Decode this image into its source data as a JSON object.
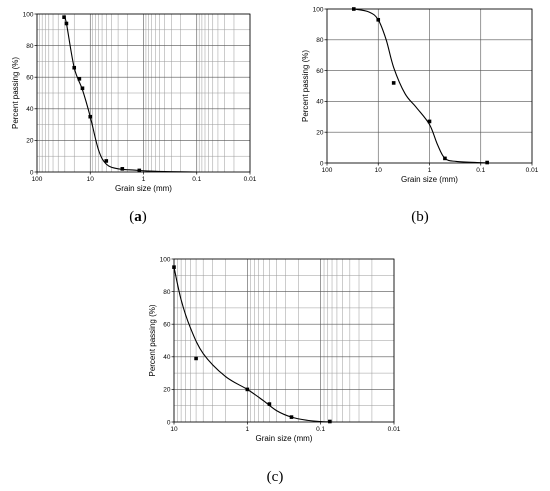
{
  "chart_data": [
    {
      "id": "a",
      "type": "scatter",
      "panel_label": "a",
      "xlabel": "Grain size (mm)",
      "ylabel": "Percent passing (%)",
      "xscale": "log-reversed",
      "xlim": [
        100,
        0.01
      ],
      "ylim": [
        0,
        100
      ],
      "grid": "major-and-minor",
      "x_ticks": [
        100,
        10,
        1,
        0.1,
        0.01
      ],
      "x_tick_labels": [
        "100",
        "10",
        "1",
        "0.1",
        "0.01"
      ],
      "y_ticks": [
        0,
        20,
        40,
        60,
        80,
        100
      ],
      "y_tick_labels": [
        "0",
        "20",
        "40",
        "60",
        "80",
        "100"
      ],
      "points": [
        {
          "x": 31,
          "y": 98
        },
        {
          "x": 28,
          "y": 94
        },
        {
          "x": 20,
          "y": 66
        },
        {
          "x": 16,
          "y": 59
        },
        {
          "x": 14,
          "y": 53
        },
        {
          "x": 10,
          "y": 35
        },
        {
          "x": 5,
          "y": 7
        },
        {
          "x": 2.5,
          "y": 2
        },
        {
          "x": 1.2,
          "y": 1
        }
      ],
      "curve": [
        {
          "x": 31,
          "y": 98
        },
        {
          "x": 28,
          "y": 94
        },
        {
          "x": 20,
          "y": 66
        },
        {
          "x": 14,
          "y": 52
        },
        {
          "x": 10,
          "y": 35
        },
        {
          "x": 7,
          "y": 14
        },
        {
          "x": 5,
          "y": 5
        },
        {
          "x": 3,
          "y": 2
        },
        {
          "x": 1.5,
          "y": 1.2
        },
        {
          "x": 0.8,
          "y": 0.6
        },
        {
          "x": 0.3,
          "y": 0.2
        },
        {
          "x": 0.1,
          "y": 0
        }
      ]
    },
    {
      "id": "b",
      "type": "scatter",
      "panel_label": "b",
      "xlabel": "Grain size (mm)",
      "ylabel": "Percent passing (%)",
      "xscale": "log-reversed",
      "xlim": [
        100,
        0.01
      ],
      "ylim": [
        0,
        100
      ],
      "grid": "major",
      "x_ticks": [
        100,
        10,
        1,
        0.1,
        0.01
      ],
      "x_tick_labels": [
        "100",
        "10",
        "1",
        "0.1",
        "0.01"
      ],
      "y_ticks": [
        0,
        20,
        40,
        60,
        80,
        100
      ],
      "y_tick_labels": [
        "0",
        "20",
        "40",
        "60",
        "80",
        "100"
      ],
      "points": [
        {
          "x": 30,
          "y": 100
        },
        {
          "x": 10,
          "y": 93
        },
        {
          "x": 5,
          "y": 52
        },
        {
          "x": 1,
          "y": 27
        },
        {
          "x": 0.5,
          "y": 3
        },
        {
          "x": 0.075,
          "y": 0.3
        }
      ],
      "curve": [
        {
          "x": 30,
          "y": 100
        },
        {
          "x": 15,
          "y": 98
        },
        {
          "x": 10,
          "y": 93
        },
        {
          "x": 7,
          "y": 80
        },
        {
          "x": 5,
          "y": 62
        },
        {
          "x": 3,
          "y": 45
        },
        {
          "x": 1.8,
          "y": 36
        },
        {
          "x": 1,
          "y": 25
        },
        {
          "x": 0.7,
          "y": 12
        },
        {
          "x": 0.5,
          "y": 3
        },
        {
          "x": 0.3,
          "y": 1
        },
        {
          "x": 0.1,
          "y": 0.2
        },
        {
          "x": 0.07,
          "y": 0
        }
      ]
    },
    {
      "id": "c",
      "type": "scatter",
      "panel_label": "c",
      "xlabel": "Grain size (mm)",
      "ylabel": "Percent passing (%)",
      "xscale": "log-reversed",
      "xlim": [
        10,
        0.01
      ],
      "ylim": [
        0,
        100
      ],
      "grid": "major-and-minor",
      "x_ticks": [
        10,
        1,
        0.1,
        0.01
      ],
      "x_tick_labels": [
        "10",
        "1",
        "0.1",
        "0.01"
      ],
      "y_ticks": [
        0,
        20,
        40,
        60,
        80,
        100
      ],
      "y_tick_labels": [
        "0",
        "20",
        "40",
        "60",
        "80",
        "100"
      ],
      "points": [
        {
          "x": 10,
          "y": 95
        },
        {
          "x": 5,
          "y": 39
        },
        {
          "x": 1,
          "y": 20
        },
        {
          "x": 0.5,
          "y": 11
        },
        {
          "x": 0.25,
          "y": 3
        },
        {
          "x": 0.075,
          "y": 0.3
        }
      ],
      "curve": [
        {
          "x": 10,
          "y": 95
        },
        {
          "x": 8,
          "y": 75
        },
        {
          "x": 6,
          "y": 58
        },
        {
          "x": 4,
          "y": 42
        },
        {
          "x": 2,
          "y": 28
        },
        {
          "x": 1,
          "y": 20
        },
        {
          "x": 0.6,
          "y": 13
        },
        {
          "x": 0.4,
          "y": 7
        },
        {
          "x": 0.25,
          "y": 3
        },
        {
          "x": 0.15,
          "y": 1
        },
        {
          "x": 0.1,
          "y": 0.3
        },
        {
          "x": 0.07,
          "y": 0
        }
      ]
    }
  ]
}
